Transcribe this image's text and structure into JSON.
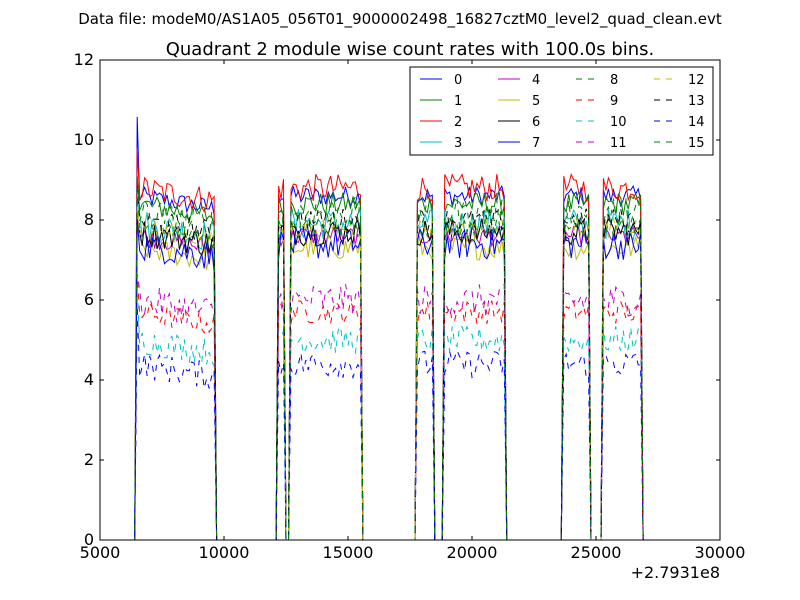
{
  "chart_data": {
    "type": "line",
    "suptitle": "Data file: modeM0/AS1A05_056T01_9000002498_16827cztM0_level2_quad_clean.evt",
    "title": "Quadrant 2 module wise count rates with 100.0s bins.",
    "xlabel": "",
    "ylabel": "",
    "x_offset_label": "+2.7931e8",
    "xlim": [
      5000,
      30000
    ],
    "ylim": [
      0,
      12
    ],
    "xticks": [
      5000,
      10000,
      15000,
      20000,
      25000,
      30000
    ],
    "yticks": [
      0,
      2,
      4,
      6,
      8,
      10,
      12
    ],
    "xtick_labels": [
      "5000",
      "10000",
      "15000",
      "20000",
      "25000",
      "30000"
    ],
    "ytick_labels": [
      "0",
      "2",
      "4",
      "6",
      "8",
      "10",
      "12"
    ],
    "grid": false,
    "legend_position": "top-right",
    "legend_columns": 4,
    "time_bin": 100,
    "segments": [
      {
        "start": 6500,
        "end": 9600
      },
      {
        "start": 12200,
        "end": 12400
      },
      {
        "start": 12700,
        "end": 15500
      },
      {
        "start": 17800,
        "end": 18400
      },
      {
        "start": 18900,
        "end": 21300
      },
      {
        "start": 23700,
        "end": 24700
      },
      {
        "start": 25300,
        "end": 26800
      }
    ],
    "series": [
      {
        "name": "0",
        "color": "#0000ff",
        "dash": "solid",
        "level": 8.6,
        "start_level": 10.5
      },
      {
        "name": "1",
        "color": "#008000",
        "dash": "solid",
        "level": 8.4,
        "start_level": 9.4
      },
      {
        "name": "2",
        "color": "#ff0000",
        "dash": "solid",
        "level": 8.8,
        "start_level": 10.0
      },
      {
        "name": "3",
        "color": "#00bfbf",
        "dash": "solid",
        "level": 7.9,
        "start_level": 8.7
      },
      {
        "name": "4",
        "color": "#bf00bf",
        "dash": "solid",
        "level": 7.6,
        "start_level": 8.3
      },
      {
        "name": "5",
        "color": "#bfbf00",
        "dash": "solid",
        "level": 7.3,
        "start_level": 8.0
      },
      {
        "name": "6",
        "color": "#000000",
        "dash": "solid",
        "level": 7.7,
        "start_level": 8.2
      },
      {
        "name": "7",
        "color": "#0000ff",
        "dash": "solid",
        "level": 7.4,
        "start_level": 8.2
      },
      {
        "name": "8",
        "color": "#008000",
        "dash": "dashed",
        "level": 7.8,
        "start_level": 8.5
      },
      {
        "name": "9",
        "color": "#ff0000",
        "dash": "dashed",
        "level": 5.7,
        "start_level": 6.6
      },
      {
        "name": "10",
        "color": "#00bfbf",
        "dash": "dashed",
        "level": 5.0,
        "start_level": 6.0
      },
      {
        "name": "11",
        "color": "#bf00bf",
        "dash": "dashed",
        "level": 6.0,
        "start_level": 7.0
      },
      {
        "name": "12",
        "color": "#bfbf00",
        "dash": "dashed",
        "level": 7.8,
        "start_level": 8.5
      },
      {
        "name": "13",
        "color": "#000000",
        "dash": "dashed",
        "level": 8.0,
        "start_level": 8.6
      },
      {
        "name": "14",
        "color": "#0000ff",
        "dash": "dashed",
        "level": 4.4,
        "start_level": 5.7
      },
      {
        "name": "15",
        "color": "#008000",
        "dash": "dashed",
        "level": 8.2,
        "start_level": 9.0
      }
    ]
  }
}
